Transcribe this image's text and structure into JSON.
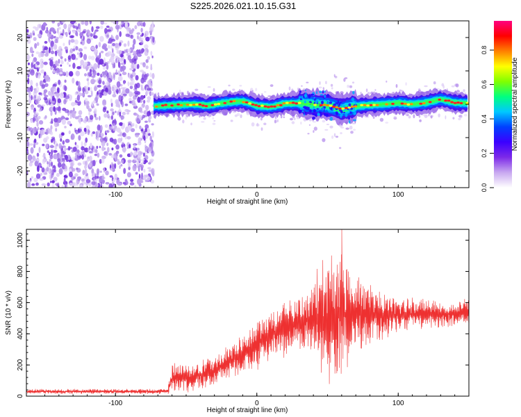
{
  "title": "S225.2026.021.10.15.G31",
  "chart_data": [
    {
      "type": "heatmap",
      "name": "spectrogram",
      "xlabel": "Height of straight line (km)",
      "ylabel": "Frequency (Hz)",
      "xlim": [
        -163,
        150
      ],
      "ylim": [
        -25,
        25
      ],
      "x_ticks": [
        -100,
        0,
        100
      ],
      "y_ticks": [
        -20,
        -10,
        0,
        10,
        20
      ],
      "noise_region_x": [
        -163,
        -73
      ],
      "signal_band_x": [
        -73,
        150
      ],
      "ridge": {
        "x": [
          -73,
          -60,
          -45,
          -35,
          -25,
          -15,
          -10,
          -5,
          0,
          10,
          20,
          30,
          40,
          50,
          60,
          70,
          80,
          90,
          100,
          110,
          120,
          130,
          140,
          150
        ],
        "y": [
          -0.6,
          -0.3,
          0.0,
          -0.4,
          0.3,
          0.8,
          0.9,
          0.3,
          -0.5,
          -0.8,
          0.2,
          0.3,
          -0.1,
          -0.3,
          -1.5,
          -0.6,
          -0.2,
          0.0,
          0.4,
          0.0,
          0.5,
          1.5,
          0.5,
          0.3
        ]
      },
      "colorbar": {
        "label": "Normalized spectral amplitude",
        "range": [
          0,
          0.97
        ],
        "ticks": [
          "0.0",
          "0.2",
          "0.4",
          "0.6",
          "0.8"
        ],
        "colors": [
          "#ffffff",
          "#c8a8f0",
          "#7d2ae8",
          "#3b00ff",
          "#0040ff",
          "#00c8ff",
          "#00ff80",
          "#80ff00",
          "#ffff00",
          "#ff8000",
          "#ff0000",
          "#ff0080"
        ]
      },
      "colors": {
        "noise": "#7a2fe0",
        "ridge_peak": "#ff2020"
      }
    },
    {
      "type": "line",
      "name": "snr",
      "xlabel": "Height of straight line (km)",
      "ylabel": "SNR (10 * v/v)",
      "xlim": [
        -163,
        150
      ],
      "ylim": [
        0,
        1070
      ],
      "x_ticks": [
        -100,
        0,
        100
      ],
      "y_ticks": [
        0,
        200,
        400,
        600,
        800,
        1000
      ],
      "color": "#ee3030",
      "envelope": {
        "x": [
          -163,
          -70,
          -63,
          -60,
          -55,
          -50,
          -45,
          -40,
          -30,
          -20,
          -10,
          0,
          10,
          20,
          30,
          40,
          45,
          50,
          55,
          60,
          65,
          70,
          80,
          90,
          100,
          110,
          120,
          130,
          140,
          150
        ],
        "mean": [
          30,
          30,
          35,
          110,
          130,
          120,
          110,
          140,
          160,
          220,
          260,
          330,
          400,
          440,
          470,
          500,
          490,
          480,
          500,
          520,
          540,
          530,
          520,
          520,
          520,
          530,
          530,
          520,
          530,
          540
        ],
        "amplitude": [
          15,
          15,
          20,
          90,
          100,
          90,
          80,
          90,
          90,
          100,
          120,
          150,
          150,
          170,
          180,
          250,
          350,
          400,
          380,
          380,
          320,
          260,
          180,
          140,
          110,
          100,
          90,
          80,
          80,
          80
        ]
      },
      "peak": {
        "x": 60,
        "y": 1068
      }
    }
  ]
}
